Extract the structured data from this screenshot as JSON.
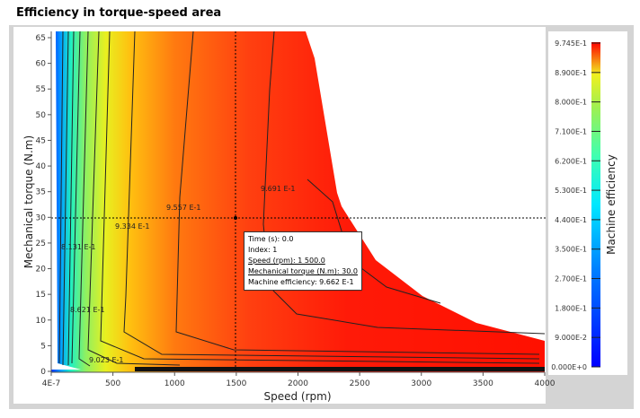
{
  "chart_data": {
    "type": "heatmap",
    "title": "Efficiency in torque-speed area",
    "xlabel": "Speed (rpm)",
    "ylabel": "Mechanical torque (N.m)",
    "xlim": [
      0,
      4000
    ],
    "ylim": [
      0,
      65
    ],
    "xticks": [
      "4E-7",
      "500",
      "1000",
      "1500",
      "2000",
      "2500",
      "3000",
      "3500",
      "4000"
    ],
    "yticks": [
      "0",
      "5",
      "10",
      "15",
      "20",
      "25",
      "30",
      "35",
      "40",
      "45",
      "50",
      "55",
      "60",
      "65"
    ],
    "colorbar": {
      "label": "Machine efficiency",
      "ticks": [
        "9.745E-1",
        "8.900E-1",
        "8.000E-1",
        "7.100E-1",
        "6.200E-1",
        "5.300E-1",
        "4.400E-1",
        "3.500E-1",
        "2.700E-1",
        "1.800E-1",
        "9.000E-2",
        "0.000E+0"
      ],
      "min": 0,
      "max": 0.9745
    },
    "contour_labels": [
      "9.691 E-1",
      "9.557 E-1",
      "9.334 E-1",
      "8.131 E-1",
      "8.621 E-1",
      "9.023 E-1"
    ],
    "cursor": {
      "speed": 1500,
      "torque": 30
    }
  },
  "tooltip": {
    "time": "Time (s): 0.0",
    "index": "Index: 1",
    "speed": "Speed (rpm): 1 500.0",
    "torque": "Mechanical torque (N.m): 30.0",
    "efficiency": "Machine efficiency: 9.662 E-1"
  }
}
